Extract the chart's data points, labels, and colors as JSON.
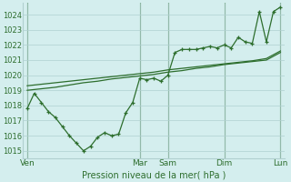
{
  "bg_color": "#d4eeee",
  "grid_color": "#b0d0d0",
  "line_color": "#2d6e2d",
  "xlabel": "Pression niveau de la mer( hPa )",
  "ylim": [
    1014.5,
    1024.8
  ],
  "xlim": [
    -0.3,
    18.3
  ],
  "day_ticks": [
    0,
    8,
    10,
    14,
    18
  ],
  "day_labels": [
    "Ven",
    "Mar",
    "Sam",
    "Dim",
    "Lun"
  ],
  "yticks": [
    1015,
    1016,
    1017,
    1018,
    1019,
    1020,
    1021,
    1022,
    1023,
    1024
  ],
  "jagged_x": [
    0,
    0.5,
    1,
    1.5,
    2,
    2.5,
    3,
    3.5,
    4,
    4.5,
    5,
    5.5,
    6,
    6.5,
    7,
    7.5,
    8,
    8.5,
    9,
    9.5,
    10,
    10.5,
    11,
    11.5,
    12,
    12.5,
    13,
    13.5,
    14,
    14.5,
    15,
    15.5,
    16,
    16.5,
    17,
    17.5,
    18
  ],
  "jagged_y": [
    1017.8,
    1018.8,
    1018.2,
    1017.6,
    1017.2,
    1016.6,
    1016.0,
    1015.5,
    1015.0,
    1015.3,
    1015.9,
    1016.2,
    1016.0,
    1016.1,
    1017.5,
    1018.2,
    1019.8,
    1019.7,
    1019.8,
    1019.6,
    1020.0,
    1021.5,
    1021.7,
    1021.7,
    1021.7,
    1021.8,
    1021.9,
    1021.8,
    1022.0,
    1021.8,
    1022.5,
    1022.2,
    1022.1,
    1024.2,
    1022.2,
    1024.2,
    1024.5
  ],
  "band_upper_x": [
    0,
    1,
    2,
    3,
    4,
    5,
    6,
    7,
    8,
    9,
    10,
    11,
    12,
    13,
    14,
    15,
    16,
    17,
    18
  ],
  "band_upper_y": [
    1019.0,
    1019.1,
    1019.2,
    1019.35,
    1019.5,
    1019.6,
    1019.75,
    1019.85,
    1019.95,
    1020.05,
    1020.2,
    1020.3,
    1020.45,
    1020.55,
    1020.7,
    1020.8,
    1020.9,
    1021.0,
    1021.5
  ],
  "band_lower_x": [
    0,
    1,
    2,
    3,
    4,
    5,
    6,
    7,
    8,
    9,
    10,
    11,
    12,
    13,
    14,
    15,
    16,
    17,
    18
  ],
  "band_lower_y": [
    1019.3,
    1019.4,
    1019.5,
    1019.6,
    1019.7,
    1019.8,
    1019.9,
    1020.0,
    1020.1,
    1020.2,
    1020.35,
    1020.45,
    1020.55,
    1020.65,
    1020.75,
    1020.85,
    1020.95,
    1021.1,
    1021.6
  ]
}
